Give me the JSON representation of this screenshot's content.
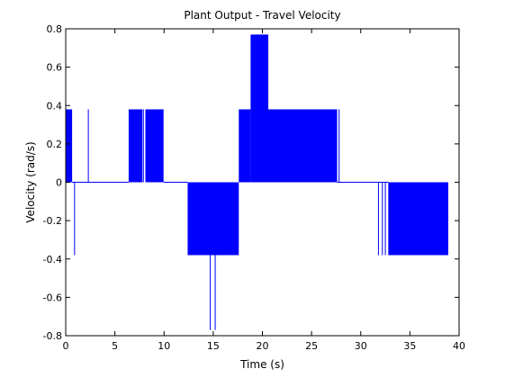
{
  "chart_data": {
    "type": "area",
    "title": "Plant Output - Travel Velocity",
    "xlabel": "Time (s)",
    "ylabel": "Velocity (rad/s)",
    "xlim": [
      0,
      40
    ],
    "ylim": [
      -0.8,
      0.8
    ],
    "xticks": [
      0,
      5,
      10,
      15,
      20,
      25,
      30,
      35,
      40
    ],
    "yticks": [
      -0.8,
      -0.6,
      -0.4,
      -0.2,
      0,
      0.2,
      0.4,
      0.6,
      0.8
    ],
    "xtick_labels": [
      "0",
      "5",
      "10",
      "15",
      "20",
      "25",
      "30",
      "35",
      "40"
    ],
    "ytick_labels": [
      "-0.8",
      "-0.6",
      "-0.4",
      "-0.2",
      "0",
      "0.2",
      "0.4",
      "0.6",
      "0.8"
    ],
    "grid": false,
    "series_color": "#0000ff",
    "filled_segments": [
      {
        "x_start": 0.0,
        "x_end": 0.65,
        "value": 0.38
      },
      {
        "x_start": 6.4,
        "x_end": 7.8,
        "value": 0.38
      },
      {
        "x_start": 8.1,
        "x_end": 9.95,
        "value": 0.38
      },
      {
        "x_start": 12.4,
        "x_end": 17.6,
        "value": -0.38
      },
      {
        "x_start": 17.6,
        "x_end": 18.8,
        "value": 0.38
      },
      {
        "x_start": 18.8,
        "x_end": 20.6,
        "value": 0.77
      },
      {
        "x_start": 20.3,
        "x_end": 27.6,
        "value": 0.38
      },
      {
        "x_start": 32.8,
        "x_end": 38.9,
        "value": -0.38
      }
    ],
    "spikes": [
      {
        "x": 0.9,
        "value": -0.38
      },
      {
        "x": 2.3,
        "value": 0.38
      },
      {
        "x": 7.9,
        "value": 0.38
      },
      {
        "x": 14.7,
        "value": -0.77
      },
      {
        "x": 15.2,
        "value": -0.77
      },
      {
        "x": 27.8,
        "value": 0.38
      },
      {
        "x": 31.8,
        "value": -0.38
      },
      {
        "x": 32.2,
        "value": -0.38
      },
      {
        "x": 32.5,
        "value": -0.38
      }
    ],
    "baseline_segments": [
      {
        "x_start": 0.65,
        "x_end": 6.4,
        "value": 0
      },
      {
        "x_start": 9.95,
        "x_end": 12.4,
        "value": 0
      },
      {
        "x_start": 27.6,
        "x_end": 32.8,
        "value": 0
      }
    ]
  }
}
